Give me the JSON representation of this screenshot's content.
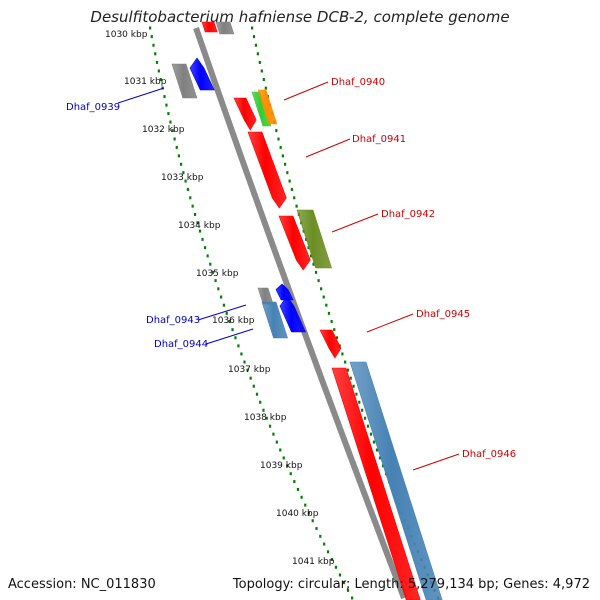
{
  "title": "Desulfitobacterium hafniense DCB-2, complete genome",
  "accession_text": "Accession: NC_011830",
  "summary_text": "Topology: circular; Length: 5,279,134 bp; Genes: 4,972",
  "colors": {
    "red": "#ff0000",
    "blue": "#0000ff",
    "steelblue": "#4682b4",
    "olive": "#6b8e23",
    "orange": "#ff8c00",
    "green": "#32cd32",
    "gray": "#808080",
    "tick_green": "#008000",
    "label_red": "#cc0000",
    "label_blue": "#0000cc"
  },
  "ticks": [
    "1030 kbp",
    "1031 kbp",
    "1032 kbp",
    "1033 kbp",
    "1034 kbp",
    "1035 kbp",
    "1036 kbp",
    "1037 kbp",
    "1038 kbp",
    "1039 kbp",
    "1040 kbp",
    "1041 kbp"
  ],
  "labels": [
    {
      "id": "Dhaf_0939",
      "text": "Dhaf_0939",
      "strand": "minus"
    },
    {
      "id": "Dhaf_0940",
      "text": "Dhaf_0940",
      "strand": "plus"
    },
    {
      "id": "Dhaf_0941",
      "text": "Dhaf_0941",
      "strand": "plus"
    },
    {
      "id": "Dhaf_0942",
      "text": "Dhaf_0942",
      "strand": "plus"
    },
    {
      "id": "Dhaf_0943",
      "text": "Dhaf_0943",
      "strand": "minus"
    },
    {
      "id": "Dhaf_0944",
      "text": "Dhaf_0944",
      "strand": "minus"
    },
    {
      "id": "Dhaf_0945",
      "text": "Dhaf_0945",
      "strand": "plus"
    },
    {
      "id": "Dhaf_0946",
      "text": "Dhaf_0946",
      "strand": "plus"
    }
  ]
}
